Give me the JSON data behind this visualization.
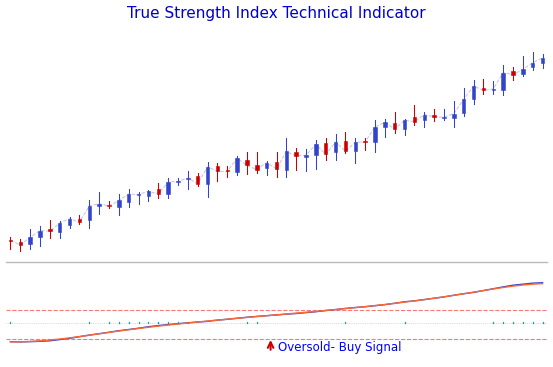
{
  "title": "True Strength Index Technical Indicator",
  "title_color": "#0000cc",
  "title_fontsize": 11,
  "bg_color": "#ffffff",
  "candle_count": 55,
  "oversold_label": "Oversold- Buy Signal",
  "oversold_label_color": "#0000ff",
  "arrow_color": "#cc0000",
  "dashed_line_color": "#ff6666",
  "tsi_line_color": "#3344cc",
  "signal_line_color": "#ff6633",
  "histogram_color": "#009999",
  "separator_color": "#bbbbbb",
  "bull_color": "#3344cc",
  "bear_color": "#cc0000",
  "dashed_candle_color": "#aaaacc"
}
